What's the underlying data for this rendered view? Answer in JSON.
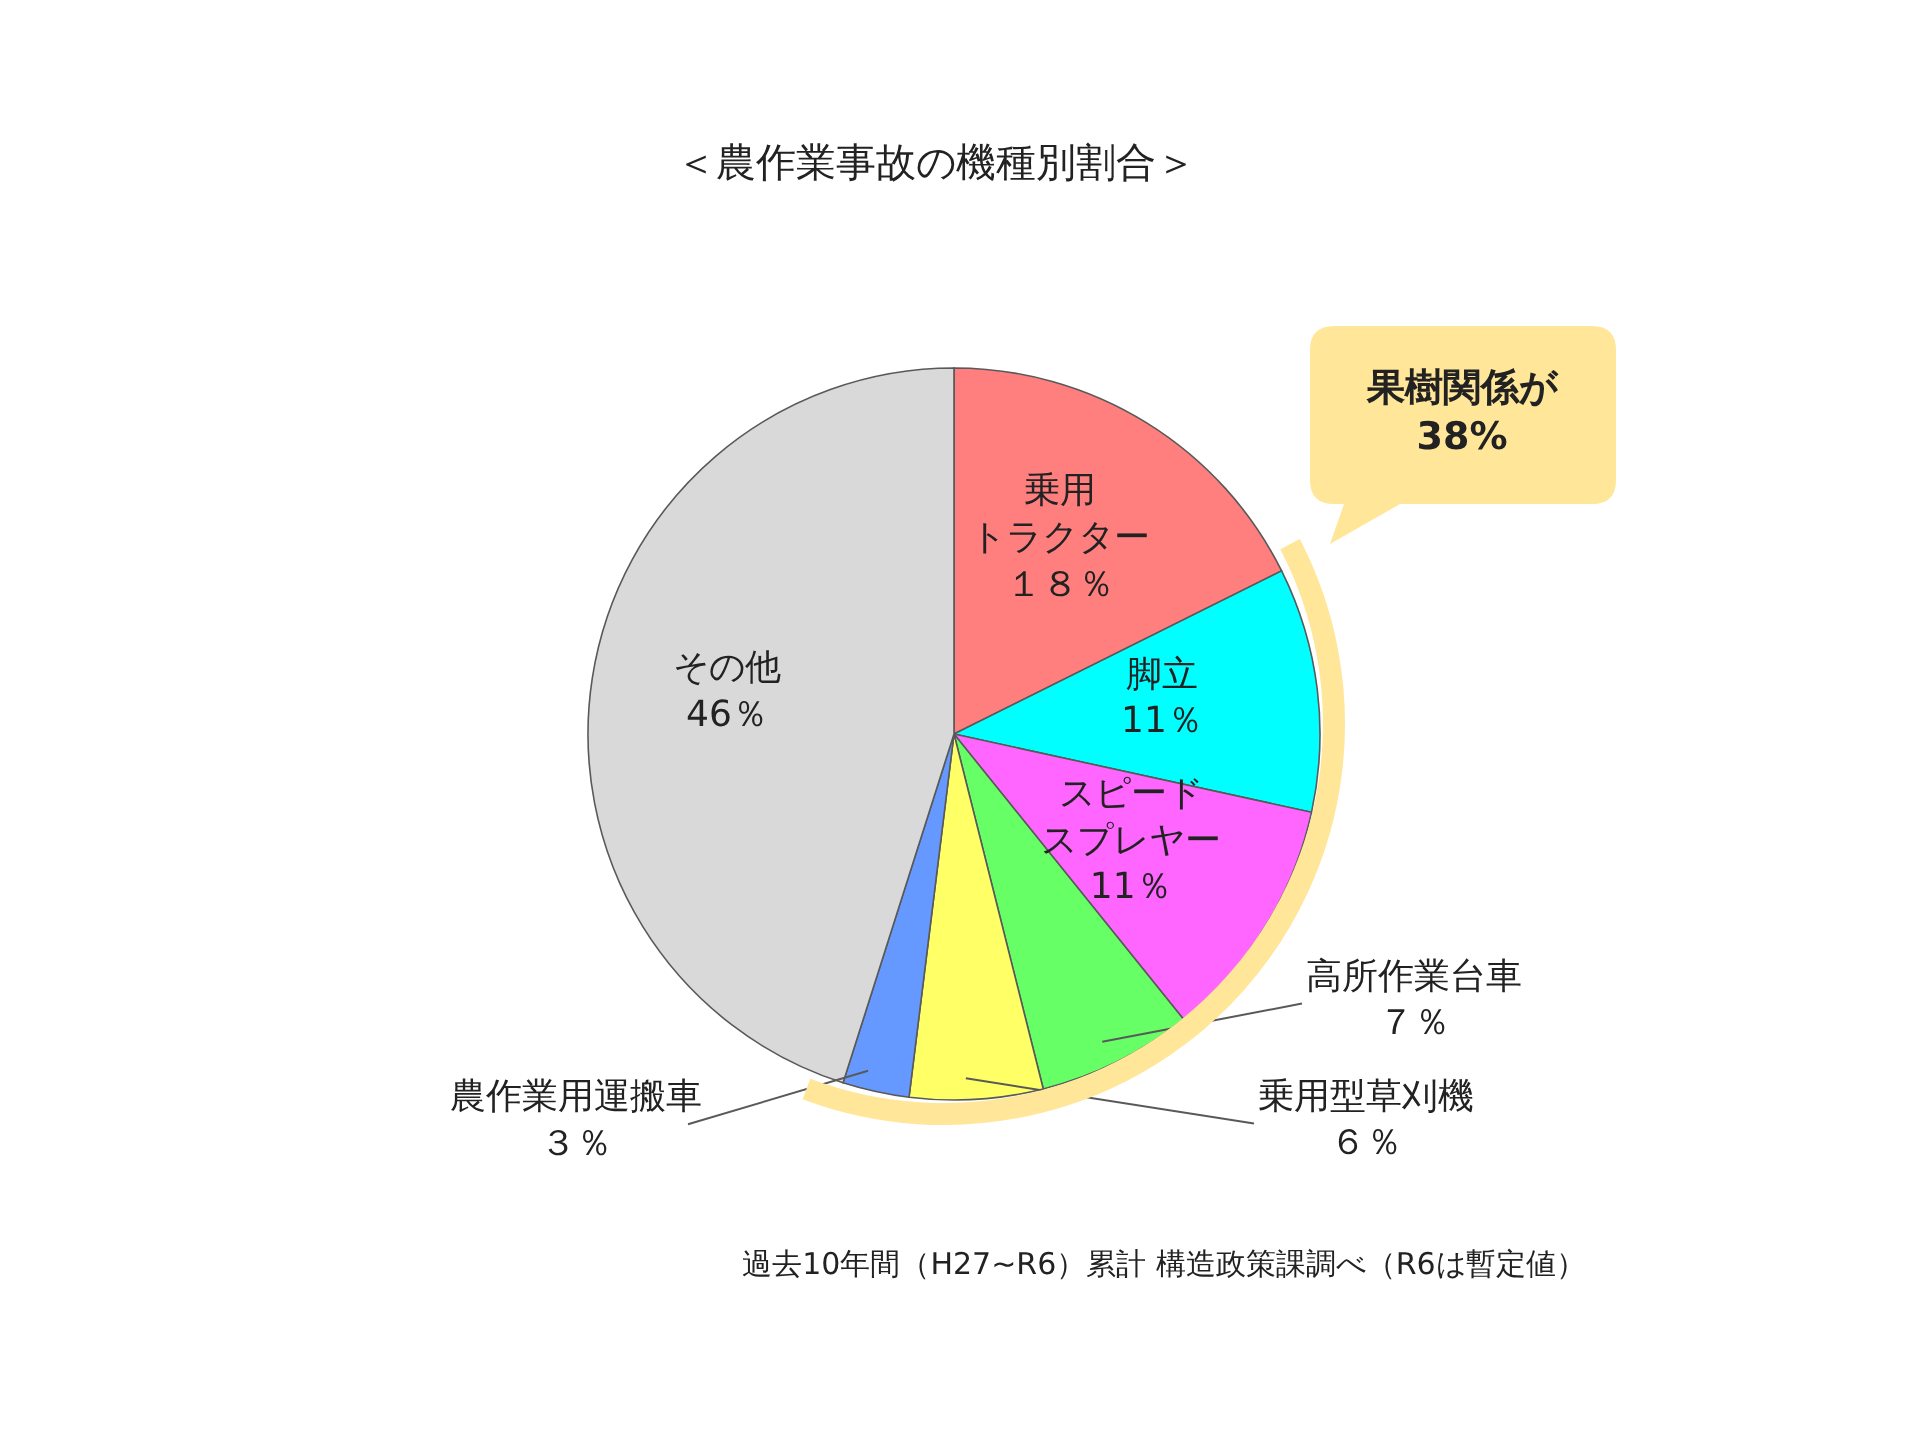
{
  "chart_data": {
    "type": "pie",
    "title": "＜農作業事故の機種別割合＞",
    "categories": [
      "乗用トラクター",
      "脚立",
      "スピードスプレヤー",
      "高所作業台車",
      "乗用型草刈機",
      "農作業用運搬車",
      "その他"
    ],
    "values": [
      18,
      11,
      11,
      7,
      6,
      3,
      46
    ],
    "colors": [
      "#ff7f7f",
      "#00ffff",
      "#ff66ff",
      "#66ff66",
      "#ffff66",
      "#6699ff",
      "#d9d9d9"
    ],
    "value_labels": [
      "１８％",
      "11％",
      "11％",
      "７％",
      "６％",
      "３％",
      "46％"
    ],
    "annotations": [
      "果樹関係が\n38%",
      "過去10年間（H27~R6）累計 構造政策課調べ（R6は暫定値）"
    ]
  }
}
